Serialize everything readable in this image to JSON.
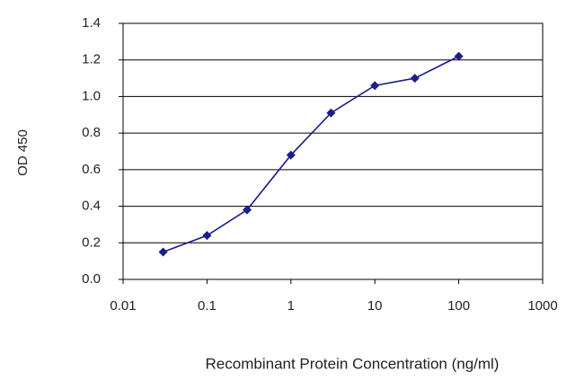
{
  "chart_data": {
    "type": "line",
    "x_label": "Recombinant Protein Concentration (ng/ml)",
    "y_label": "OD 450",
    "x": [
      0.03,
      0.1,
      0.3,
      1,
      3,
      10,
      30,
      100
    ],
    "series": [
      {
        "name": "OD 450",
        "color": "#1c1c8c",
        "values": [
          0.15,
          0.24,
          0.38,
          0.68,
          0.91,
          1.06,
          1.1,
          1.22
        ]
      }
    ],
    "xlog": true,
    "xlim": [
      0.01,
      1000
    ],
    "xticks": [
      0.01,
      0.1,
      1,
      10,
      100,
      1000
    ],
    "ylim": [
      0,
      1.4
    ],
    "yticks": [
      {
        "value": 0,
        "label": "0.0"
      },
      0.2,
      0.4,
      0.6,
      0.8,
      {
        "value": 1,
        "label": "1.0"
      },
      1.2,
      1.4
    ],
    "grid": true
  }
}
